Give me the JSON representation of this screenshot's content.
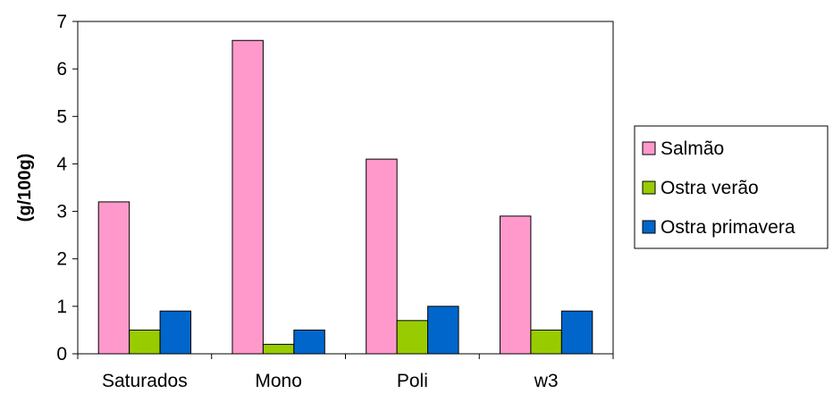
{
  "chart_data": {
    "type": "bar",
    "title": "",
    "xlabel": "",
    "ylabel": "(g/100g)",
    "ylim": [
      0,
      7
    ],
    "yticks": [
      0,
      1,
      2,
      3,
      4,
      5,
      6,
      7
    ],
    "grid": false,
    "legend_position": "right",
    "categories": [
      "Saturados",
      "Mono",
      "Poli",
      "w3"
    ],
    "series": [
      {
        "name": "Salmão",
        "color": "#FF99CC",
        "values": [
          3.2,
          6.6,
          4.1,
          2.9
        ]
      },
      {
        "name": "Ostra verão",
        "color": "#99CC00",
        "values": [
          0.5,
          0.2,
          0.7,
          0.5
        ]
      },
      {
        "name": "Ostra primavera",
        "color": "#0066CC",
        "values": [
          0.9,
          0.5,
          1.0,
          0.9
        ]
      }
    ]
  }
}
